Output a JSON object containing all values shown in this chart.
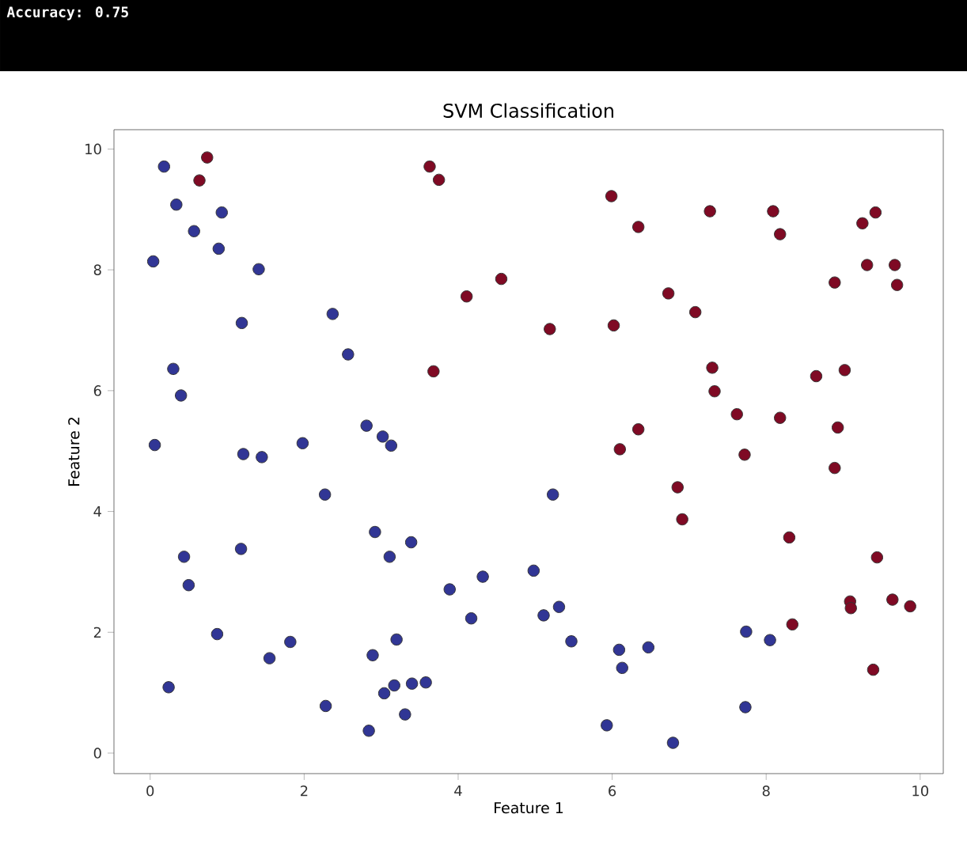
{
  "chart_data": {
    "type": "scatter",
    "title": "SVM Classification",
    "xlabel": "Feature 1",
    "ylabel": "Feature 2",
    "annotations": [
      "Accuracy: 0.75"
    ],
    "xlim": [
      -0.47,
      10.3
    ],
    "ylim": [
      -0.34,
      10.32
    ],
    "xticks": [
      0,
      2,
      4,
      6,
      8,
      10
    ],
    "yticks": [
      0,
      2,
      4,
      6,
      8,
      10
    ],
    "marker": "circle",
    "legend": false,
    "grid": false,
    "series": [
      {
        "color": "#313695",
        "x": [
          0.18,
          0.34,
          0.57,
          0.93,
          0.89,
          0.04,
          1.41,
          1.19,
          0.3,
          0.4,
          0.06,
          1.21,
          1.45,
          1.98,
          2.37,
          2.57,
          2.81,
          3.02,
          3.13,
          2.27,
          0.44,
          0.5,
          1.18,
          0.87,
          0.24,
          1.55,
          1.82,
          2.28,
          2.84,
          2.89,
          2.92,
          3.11,
          3.39,
          3.2,
          3.04,
          3.17,
          3.4,
          3.58,
          3.31,
          3.89,
          4.32,
          4.17,
          5.23,
          4.98,
          5.11,
          5.31,
          5.47,
          6.09,
          6.13,
          6.47,
          5.93,
          6.79,
          7.74,
          8.05,
          7.73
        ],
        "values": [
          9.71,
          9.08,
          8.64,
          8.95,
          8.35,
          8.14,
          8.01,
          7.12,
          6.36,
          5.92,
          5.1,
          4.95,
          4.9,
          5.13,
          7.27,
          6.6,
          5.42,
          5.24,
          5.09,
          4.28,
          3.25,
          2.78,
          3.38,
          1.97,
          1.09,
          1.57,
          1.84,
          0.78,
          0.37,
          1.62,
          3.66,
          3.25,
          3.49,
          1.88,
          0.99,
          1.12,
          1.15,
          1.17,
          0.64,
          2.71,
          2.92,
          2.23,
          4.28,
          3.02,
          2.28,
          2.42,
          1.85,
          1.71,
          1.41,
          1.75,
          0.46,
          0.17,
          2.01,
          1.87,
          0.76
        ]
      },
      {
        "color": "#7f0a24",
        "x": [
          0.74,
          0.64,
          3.63,
          3.75,
          4.11,
          4.56,
          3.68,
          5.99,
          6.34,
          7.27,
          8.09,
          8.18,
          9.25,
          9.42,
          9.31,
          9.67,
          9.7,
          8.89,
          5.19,
          6.02,
          6.73,
          7.08,
          7.3,
          7.33,
          7.62,
          8.18,
          8.65,
          9.02,
          8.93,
          8.89,
          6.34,
          6.1,
          7.72,
          6.85,
          6.91,
          8.3,
          9.44,
          9.09,
          9.1,
          9.64,
          9.87,
          8.34,
          9.39
        ],
        "values": [
          9.86,
          9.48,
          9.71,
          9.49,
          7.56,
          7.85,
          6.32,
          9.22,
          8.71,
          8.97,
          8.97,
          8.59,
          8.77,
          8.95,
          8.08,
          8.08,
          7.75,
          7.79,
          7.02,
          7.08,
          7.61,
          7.3,
          6.38,
          5.99,
          5.61,
          5.55,
          6.24,
          6.34,
          5.39,
          4.72,
          5.36,
          5.03,
          4.94,
          4.4,
          3.87,
          3.57,
          3.24,
          2.51,
          2.4,
          2.54,
          2.43,
          2.13,
          1.38
        ]
      }
    ]
  }
}
